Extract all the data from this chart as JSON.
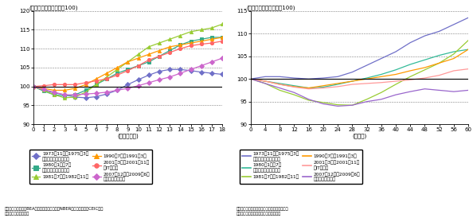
{
  "left": {
    "title": "(各リセッション入り＝100)",
    "xlabel": "(経過四半期)",
    "xlim": [
      0,
      18
    ],
    "ylim": [
      90,
      120
    ],
    "yticks": [
      90,
      95,
      100,
      105,
      110,
      115,
      120
    ],
    "xticks": [
      0,
      1,
      2,
      3,
      4,
      5,
      6,
      7,
      8,
      9,
      10,
      11,
      12,
      13,
      14,
      15,
      16,
      17,
      18
    ],
    "series": {
      "1973": {
        "color": "#7070c8",
        "marker": "D",
        "data": [
          100,
          99.0,
          98.3,
          97.8,
          97.2,
          97.0,
          97.3,
          98.0,
          99.0,
          100.5,
          101.8,
          103.0,
          104.0,
          104.5,
          104.5,
          104.2,
          103.8,
          103.5,
          103.2
        ]
      },
      "1980": {
        "color": "#33aa88",
        "marker": "s",
        "data": [
          100,
          98.8,
          97.8,
          97.5,
          97.8,
          99.0,
          100.5,
          102.0,
          103.5,
          104.5,
          105.5,
          106.5,
          108.0,
          109.5,
          111.0,
          112.0,
          112.5,
          113.0,
          113.0
        ]
      },
      "1981": {
        "color": "#99cc33",
        "marker": "^",
        "data": [
          100,
          99.0,
          97.8,
          97.0,
          97.2,
          98.5,
          100.5,
          102.5,
          104.5,
          106.5,
          108.5,
          110.5,
          111.5,
          112.5,
          113.5,
          114.5,
          115.0,
          115.5,
          116.5
        ]
      },
      "1990": {
        "color": "#ff9900",
        "marker": "^",
        "data": [
          100,
          99.5,
          99.0,
          99.0,
          99.5,
          100.5,
          102.0,
          103.5,
          105.0,
          106.5,
          107.5,
          108.5,
          109.5,
          110.5,
          111.0,
          111.5,
          112.0,
          112.5,
          113.0
        ]
      },
      "2001": {
        "color": "#ff6666",
        "marker": "o",
        "data": [
          100,
          100.2,
          100.5,
          100.5,
          100.5,
          101.0,
          101.5,
          102.0,
          103.0,
          104.2,
          105.5,
          107.0,
          108.0,
          109.0,
          110.0,
          110.8,
          111.2,
          111.5,
          112.0
        ]
      },
      "2007": {
        "color": "#cc66cc",
        "marker": "D",
        "data": [
          100,
          99.2,
          98.5,
          97.8,
          97.8,
          98.0,
          98.2,
          98.5,
          99.0,
          99.5,
          100.2,
          101.0,
          101.8,
          102.5,
          103.5,
          104.5,
          105.5,
          106.5,
          107.5
        ]
      }
    }
  },
  "right": {
    "title": "(各リセッション入り＝100)",
    "xlabel": "(経過月)",
    "xlim": [
      0,
      60
    ],
    "ylim": [
      90,
      115
    ],
    "yticks": [
      90,
      95,
      100,
      105,
      110,
      115
    ],
    "xticks": [
      0,
      4,
      8,
      12,
      16,
      20,
      24,
      28,
      32,
      36,
      40,
      44,
      48,
      52,
      56,
      60
    ],
    "series": {
      "1973": {
        "color": "#7070c8",
        "data_x": [
          0,
          4,
          8,
          12,
          16,
          20,
          24,
          28,
          32,
          36,
          40,
          44,
          48,
          52,
          56,
          60
        ],
        "data_y": [
          100,
          100.5,
          100.5,
          100.2,
          100.0,
          100.2,
          100.5,
          101.5,
          103.0,
          104.5,
          106.0,
          108.0,
          109.5,
          110.5,
          112.0,
          113.5
        ]
      },
      "1980": {
        "color": "#33bb99",
        "data_x": [
          0,
          4,
          8,
          12,
          16,
          20,
          24,
          28,
          32,
          36,
          40,
          44,
          48,
          52,
          56,
          60
        ],
        "data_y": [
          100,
          99.5,
          99.0,
          98.5,
          98.0,
          98.2,
          98.8,
          99.5,
          100.2,
          101.0,
          102.0,
          103.2,
          104.2,
          105.2,
          106.0,
          106.5
        ]
      },
      "1981": {
        "color": "#99cc33",
        "data_x": [
          0,
          4,
          8,
          12,
          16,
          20,
          24,
          28,
          32,
          36,
          40,
          44,
          48,
          52,
          56,
          60
        ],
        "data_y": [
          100,
          99.0,
          97.5,
          96.5,
          95.3,
          94.8,
          94.3,
          94.2,
          95.5,
          97.0,
          98.8,
          100.5,
          102.0,
          103.5,
          105.5,
          108.5
        ]
      },
      "1990": {
        "color": "#ff9900",
        "data_x": [
          0,
          4,
          8,
          12,
          16,
          20,
          24,
          28,
          32,
          36,
          40,
          44,
          48,
          52,
          56,
          60
        ],
        "data_y": [
          100,
          99.5,
          98.8,
          98.3,
          98.0,
          98.5,
          99.0,
          99.5,
          100.0,
          100.5,
          101.0,
          101.8,
          102.5,
          103.5,
          104.5,
          106.5
        ]
      },
      "2001": {
        "color": "#ff9999",
        "data_x": [
          0,
          4,
          8,
          12,
          16,
          20,
          24,
          28,
          32,
          36,
          40,
          44,
          48,
          52,
          56,
          60
        ],
        "data_y": [
          100,
          99.5,
          98.8,
          98.2,
          97.8,
          98.0,
          98.3,
          98.8,
          99.0,
          99.2,
          99.5,
          99.8,
          100.2,
          100.8,
          101.8,
          102.2
        ]
      },
      "2007": {
        "color": "#9966cc",
        "data_x": [
          0,
          4,
          8,
          12,
          16,
          20,
          24,
          28,
          32,
          36,
          40,
          44,
          48,
          52,
          56,
          60
        ],
        "data_y": [
          100,
          99.0,
          98.0,
          97.0,
          95.5,
          94.5,
          94.0,
          94.2,
          95.0,
          95.5,
          96.5,
          97.2,
          97.8,
          97.5,
          97.2,
          97.5
        ]
      }
    }
  },
  "legend_left": [
    {
      "label": "1973年11月～1975广3月\n（第一次石油危機等）",
      "color": "#7070c8",
      "marker": "D"
    },
    {
      "label": "1980年1月～7月\n（第二次石油危機等）",
      "color": "#33aa88",
      "marker": "s"
    },
    {
      "label": "1981年7月～1982年11月",
      "color": "#99cc33",
      "marker": "^"
    },
    {
      "label": "1990年7月～1991年3月",
      "color": "#ff9900",
      "marker": "^"
    },
    {
      "label": "2001年3月～2001年11月\n（IT不況）",
      "color": "#ff6666",
      "marker": "o"
    },
    {
      "label": "2007年12月～2009年6月\n（世界経済危機）",
      "color": "#cc66cc",
      "marker": "D"
    }
  ],
  "legend_right": [
    {
      "label": "1973年11月～1975广3月\n（第一次石油危機等）",
      "color": "#7070c8"
    },
    {
      "label": "1980年1月～7月\n（第二次石油危機等）",
      "color": "#33bb99"
    },
    {
      "label": "1981年7月～1982年11月",
      "color": "#99cc33"
    },
    {
      "label": "1990年7月～1991年3月",
      "color": "#ff9900"
    },
    {
      "label": "2001年3月～2001年11月\n（IT不況）",
      "color": "#ff9999"
    },
    {
      "label": "2007年12月～2009年6月\n（世界経済危機）",
      "color": "#9966cc"
    }
  ],
  "footnote_left": "資料：米国商務省（BEA）、全米経済研究所（NBER）、報道資料、CEICデー\n　タベースから作成。",
  "footnote_right": "備考：非農業部門雇用者数（政府部門含む）。\n資料：米国労働省、報道資料から作成。"
}
